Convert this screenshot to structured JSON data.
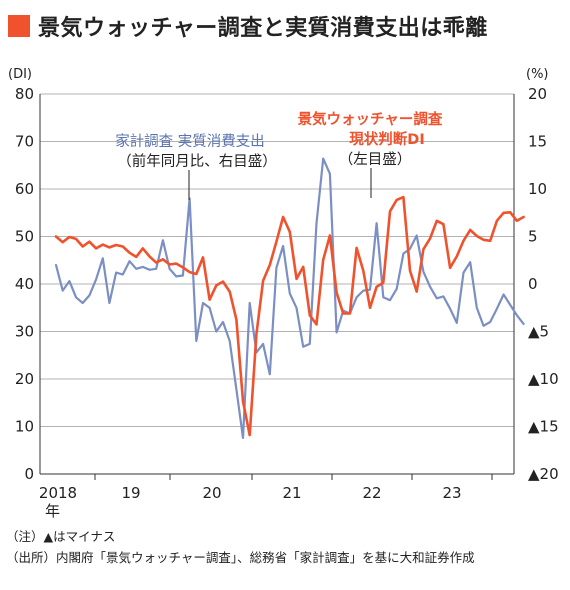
{
  "colors": {
    "accent": "#f0522d",
    "blue": "#7b8fc4",
    "orange": "#f0522d",
    "grid": "#9a9a9a"
  },
  "title": "景気ウォッチャー調査と実質消費支出は乖離",
  "notes": {
    "line1": "（注）▲はマイナス",
    "line2": "（出所）内閣府「景気ウォッチャー調査」、総務省「家計調査」を基に大和証券作成"
  },
  "chart_data": {
    "type": "line",
    "left_unit": "(DI)",
    "right_unit": "(%)",
    "left_ylim": [
      0,
      80
    ],
    "right_ylim": [
      -20,
      20
    ],
    "left_ticks": [
      "0",
      "10",
      "20",
      "30",
      "40",
      "50",
      "60",
      "70",
      "80"
    ],
    "right_ticks": [
      "▲20",
      "▲15",
      "▲10",
      "▲5",
      "0",
      "5",
      "10",
      "15",
      "20"
    ],
    "x_labels": [
      "2018",
      "19",
      "20",
      "21",
      "22",
      "23"
    ],
    "x_label_extra": "年",
    "grid": "horizontal",
    "annotations": {
      "blue_line1": "家計調査 実質消費支出",
      "blue_line2": "（前年同月比、右目盛）",
      "orange_line1": "景気ウォッチャー調査",
      "orange_line2": "現状判断DI",
      "orange_line3": "（左目盛）"
    },
    "series": [
      {
        "name": "景気ウォッチャー調査 現状判断DI",
        "axis": "left",
        "values": [
          50,
          48.8,
          49.9,
          49.5,
          47.9,
          48.9,
          47.5,
          48.3,
          47.7,
          48.2,
          47.9,
          46.6,
          45.7,
          47.5,
          45.8,
          44.5,
          45.2,
          44.1,
          44.3,
          43.5,
          42.5,
          42.1,
          45.6,
          36.7,
          39.7,
          40.5,
          38.4,
          32.5,
          15.3,
          8.2,
          29.4,
          40.7,
          44.0,
          48.9,
          54.1,
          51.0,
          41.1,
          43.6,
          33.4,
          31.5,
          45.1,
          50.2,
          38.2,
          33.8,
          33.8,
          47.6,
          42.8,
          35.0,
          39.4,
          40.3,
          55.3,
          57.7,
          58.3,
          42.8,
          38.4,
          47.3,
          49.6,
          53.3,
          52.6,
          43.4,
          45.8,
          49.1,
          51.4,
          50.1,
          49.3,
          49.1,
          53.3,
          55.0,
          55.1,
          53.3,
          54.1
        ]
      },
      {
        "name": "家計調査 実質消費支出",
        "axis": "right",
        "values": [
          2.0,
          -0.7,
          0.3,
          -1.4,
          -2.0,
          -1.2,
          0.5,
          2.7,
          -2.0,
          1.2,
          1.0,
          2.4,
          1.6,
          1.8,
          1.5,
          1.6,
          4.6,
          1.6,
          0.8,
          0.9,
          9.0,
          -6.0,
          -2.0,
          -2.5,
          -5.0,
          -4.0,
          -6.0,
          -11.1,
          -16.2,
          -2.0,
          -7.2,
          -6.3,
          -9.5,
          1.7,
          4.0,
          -1.0,
          -2.5,
          -6.6,
          -6.3,
          6.4,
          13.2,
          11.6,
          -5.1,
          -2.8,
          -3.1,
          -1.4,
          -0.7,
          -0.6,
          6.4,
          -1.4,
          -1.7,
          -0.5,
          3.2,
          3.7,
          5.1,
          1.3,
          -0.3,
          -1.5,
          -1.3,
          -2.6,
          -4.1,
          1.2,
          2.3,
          -2.5,
          -4.4,
          -4.0,
          -2.6,
          -1.1,
          -2.2,
          -3.3,
          -4.2
        ]
      }
    ]
  }
}
